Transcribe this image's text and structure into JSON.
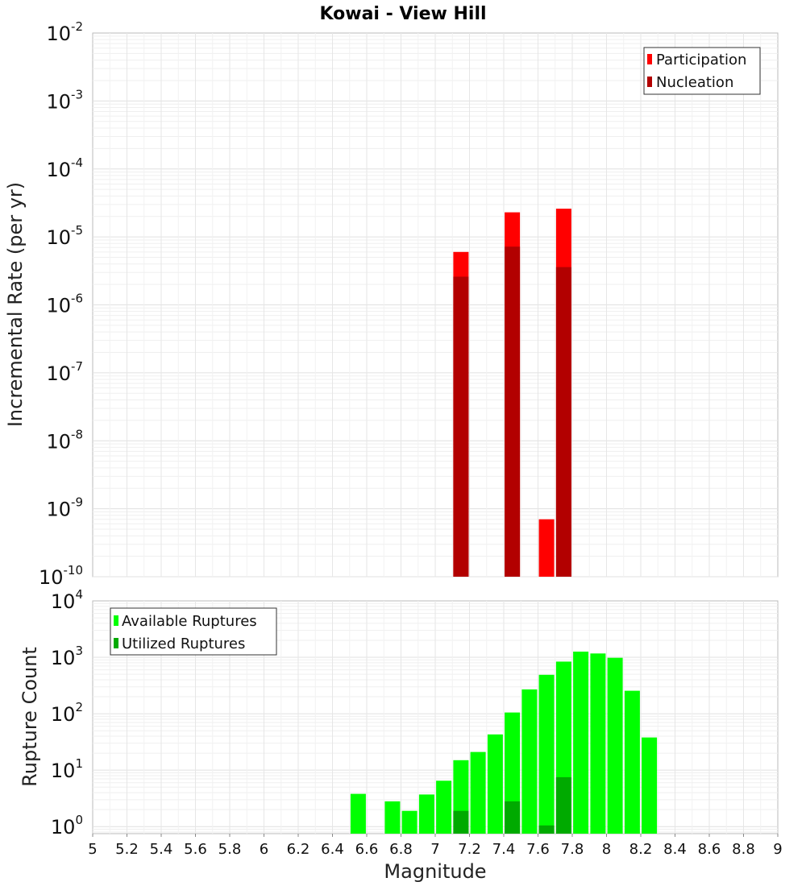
{
  "chart_data": [
    {
      "type": "bar",
      "title": "Kowai - View Hill",
      "ylabel": "Incremental Rate (per yr)",
      "yscale": "log",
      "ylim": [
        1e-10,
        0.01
      ],
      "xlim": [
        5,
        9
      ],
      "y_tick_labels": [
        {
          "base": "10",
          "exp": "-10"
        },
        {
          "base": "10",
          "exp": "-9"
        },
        {
          "base": "10",
          "exp": "-8"
        },
        {
          "base": "10",
          "exp": "-7"
        },
        {
          "base": "10",
          "exp": "-6"
        },
        {
          "base": "10",
          "exp": "-5"
        },
        {
          "base": "10",
          "exp": "-4"
        },
        {
          "base": "10",
          "exp": "-3"
        },
        {
          "base": "10",
          "exp": "-2"
        }
      ],
      "grid": true,
      "legend_position": "top-right",
      "series": [
        {
          "name": "Participation",
          "color": "#ff0000",
          "x": [
            7.15,
            7.45,
            7.65,
            7.75
          ],
          "values": [
            6e-06,
            2.3e-05,
            7e-10,
            2.6e-05
          ]
        },
        {
          "name": "Nucleation",
          "color": "#b20000",
          "x": [
            7.15,
            7.45,
            7.75
          ],
          "values": [
            2.6e-06,
            7.2e-06,
            3.6e-06
          ]
        }
      ]
    },
    {
      "type": "bar",
      "ylabel": "Rupture Count",
      "xlabel": "Magnitude",
      "yscale": "log",
      "ylim": [
        0.75,
        10000
      ],
      "xlim": [
        5,
        9
      ],
      "x_ticks": [
        "5",
        "5.2",
        "5.4",
        "5.6",
        "5.8",
        "6",
        "6.2",
        "6.4",
        "6.6",
        "6.8",
        "7",
        "7.2",
        "7.4",
        "7.6",
        "7.8",
        "8",
        "8.2",
        "8.4",
        "8.6",
        "8.8",
        "9"
      ],
      "y_tick_labels": [
        {
          "base": "10",
          "exp": "0"
        },
        {
          "base": "10",
          "exp": "1"
        },
        {
          "base": "10",
          "exp": "2"
        },
        {
          "base": "10",
          "exp": "3"
        },
        {
          "base": "10",
          "exp": "4"
        }
      ],
      "grid": true,
      "legend_position": "top-left",
      "series": [
        {
          "name": "Available Ruptures",
          "color": "#00ff00",
          "x": [
            6.55,
            6.75,
            6.85,
            6.95,
            7.05,
            7.15,
            7.25,
            7.35,
            7.45,
            7.55,
            7.65,
            7.75,
            7.85,
            7.95,
            8.05,
            8.15,
            8.25
          ],
          "values": [
            3.8,
            2.8,
            1.9,
            3.7,
            6.5,
            15,
            21,
            43,
            105,
            270,
            490,
            840,
            1260,
            1170,
            980,
            255,
            38
          ]
        },
        {
          "name": "Utilized Ruptures",
          "color": "#00aa00",
          "x": [
            7.15,
            7.45,
            7.65,
            7.75
          ],
          "values": [
            1.9,
            2.8,
            1.05,
            7.5
          ]
        }
      ]
    }
  ]
}
